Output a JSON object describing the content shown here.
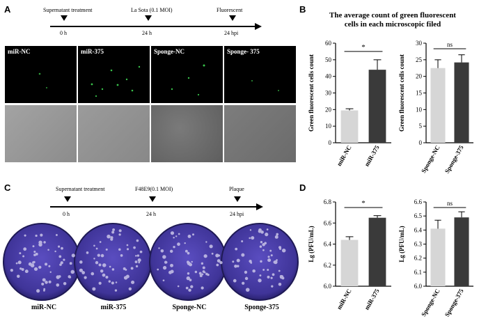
{
  "panels": {
    "a": "A",
    "b": "B",
    "c": "C",
    "d": "D"
  },
  "timeline_a": {
    "events": [
      "Supernatant treatment",
      "La Sota (0.1 MOI)",
      "Fluorescent"
    ],
    "times": [
      "0 h",
      "24 h",
      "24 hpi"
    ]
  },
  "timeline_c": {
    "events": [
      "Supernatant treatment",
      "F48E9(0.1 MOI)",
      "Plaque"
    ],
    "times": [
      "0 h",
      "24 h",
      "24 hpi"
    ]
  },
  "micro_labels": [
    "miR-NC",
    "miR-375",
    "Sponge-NC",
    "Sponge- 375"
  ],
  "plate_labels": [
    "miR-NC",
    "miR-375",
    "Sponge-NC",
    "Sponge-375"
  ],
  "b_title_line1": "The average count of  green fluorescent",
  "b_title_line2": "cells in each microscopic filed",
  "colors": {
    "light_bar": "#d6d6d6",
    "dark_bar": "#3a3a3a",
    "plate_purple": "#4b3fa8",
    "micro_bg": "#000000",
    "bright_field": "#8f8f8f"
  },
  "chart_data": [
    {
      "type": "bar",
      "panel": "B-left",
      "categories": [
        "miR-NC",
        "miR-375"
      ],
      "values": [
        19.5,
        44
      ],
      "errors": [
        1,
        6
      ],
      "ylabel": "Green fluorescent cells count",
      "ylim": [
        0,
        60
      ],
      "yticks": [
        0,
        10,
        20,
        30,
        40,
        50,
        60
      ],
      "significance": "*"
    },
    {
      "type": "bar",
      "panel": "B-right",
      "categories": [
        "Sponge-NC",
        "Sponge-375"
      ],
      "values": [
        22.5,
        24.2
      ],
      "errors": [
        2.5,
        2.3
      ],
      "ylabel": "Green fluorescent cells count",
      "ylim": [
        0,
        30
      ],
      "yticks": [
        0,
        5,
        10,
        15,
        20,
        25,
        30
      ],
      "significance": "ns"
    },
    {
      "type": "bar",
      "panel": "D-left",
      "categories": [
        "miR-NC",
        "miR-375"
      ],
      "values": [
        6.44,
        6.65
      ],
      "errors": [
        0.03,
        0.02
      ],
      "ylabel": "Lg (PFU/mL)",
      "ylim": [
        6.0,
        6.8
      ],
      "yticks": [
        6.0,
        6.2,
        6.4,
        6.6,
        6.8
      ],
      "significance": "*"
    },
    {
      "type": "bar",
      "panel": "D-right",
      "categories": [
        "Sponge-NC",
        "Sponge-375"
      ],
      "values": [
        6.41,
        6.49
      ],
      "errors": [
        0.06,
        0.04
      ],
      "ylabel": "Lg (PFU/mL)",
      "ylim": [
        6.0,
        6.6
      ],
      "yticks": [
        6.0,
        6.1,
        6.2,
        6.3,
        6.4,
        6.5,
        6.6
      ],
      "significance": "ns"
    }
  ]
}
